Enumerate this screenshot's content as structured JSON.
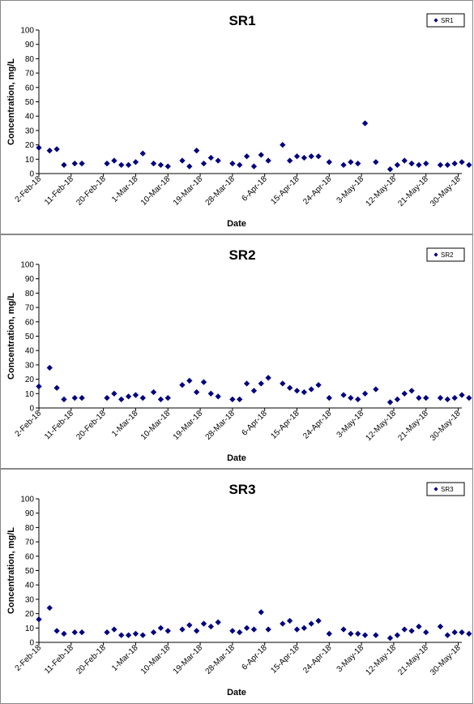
{
  "chart_data": [
    {
      "type": "scatter",
      "title": "SR1",
      "xlabel": "Date",
      "ylabel": "Concentration, mg/L",
      "ylim": [
        0,
        100
      ],
      "yticks": [
        0,
        10,
        20,
        30,
        40,
        50,
        60,
        70,
        80,
        90,
        100
      ],
      "xlim": [
        "2018-02-02",
        "2018-05-31"
      ],
      "xticks": [
        "2-Feb-18",
        "11-Feb-18",
        "20-Feb-18",
        "1-Mar-18",
        "10-Mar-18",
        "19-Mar-18",
        "28-Mar-18",
        "6-Apr-18",
        "15-Apr-18",
        "24-Apr-18",
        "3-May-18",
        "12-May-18",
        "21-May-18",
        "30-May-18"
      ],
      "grid": false,
      "legend": "top-right",
      "marker_color": "#000080",
      "series": [
        {
          "name": "SR1",
          "x": [
            "2018-02-02",
            "2018-02-05",
            "2018-02-07",
            "2018-02-09",
            "2018-02-12",
            "2018-02-14",
            "2018-02-21",
            "2018-02-23",
            "2018-02-25",
            "2018-02-27",
            "2018-03-01",
            "2018-03-03",
            "2018-03-06",
            "2018-03-08",
            "2018-03-10",
            "2018-03-14",
            "2018-03-16",
            "2018-03-18",
            "2018-03-20",
            "2018-03-22",
            "2018-03-24",
            "2018-03-28",
            "2018-03-30",
            "2018-04-01",
            "2018-04-03",
            "2018-04-05",
            "2018-04-07",
            "2018-04-11",
            "2018-04-13",
            "2018-04-15",
            "2018-04-17",
            "2018-04-19",
            "2018-04-21",
            "2018-04-24",
            "2018-04-28",
            "2018-04-30",
            "2018-05-02",
            "2018-05-04",
            "2018-05-07",
            "2018-05-11",
            "2018-05-13",
            "2018-05-15",
            "2018-05-17",
            "2018-05-19",
            "2018-05-21",
            "2018-05-25",
            "2018-05-27",
            "2018-05-29",
            "2018-05-31",
            "2018-06-02"
          ],
          "y": [
            18,
            16,
            17,
            6,
            7,
            7,
            7,
            9,
            6,
            6,
            8,
            14,
            7,
            6,
            5,
            9,
            5,
            16,
            7,
            11,
            9,
            7,
            6,
            12,
            5,
            13,
            9,
            20,
            9,
            12,
            11,
            12,
            12,
            8,
            6,
            8,
            7,
            35,
            8,
            3,
            6,
            9,
            7,
            6,
            7,
            6,
            6,
            7,
            8,
            6
          ]
        }
      ]
    },
    {
      "type": "scatter",
      "title": "SR2",
      "xlabel": "Date",
      "ylabel": "Concentration, mg/L",
      "ylim": [
        0,
        100
      ],
      "yticks": [
        0,
        10,
        20,
        30,
        40,
        50,
        60,
        70,
        80,
        90,
        100
      ],
      "xlim": [
        "2018-02-02",
        "2018-05-31"
      ],
      "xticks": [
        "2-Feb-18",
        "11-Feb-18",
        "20-Feb-18",
        "1-Mar-18",
        "10-Mar-18",
        "19-Mar-18",
        "28-Mar-18",
        "6-Apr-18",
        "15-Apr-18",
        "24-Apr-18",
        "3-May-18",
        "12-May-18",
        "21-May-18",
        "30-May-18"
      ],
      "grid": false,
      "legend": "top-right",
      "marker_color": "#000080",
      "series": [
        {
          "name": "SR2",
          "x": [
            "2018-02-02",
            "2018-02-05",
            "2018-02-07",
            "2018-02-09",
            "2018-02-12",
            "2018-02-14",
            "2018-02-21",
            "2018-02-23",
            "2018-02-25",
            "2018-02-27",
            "2018-03-01",
            "2018-03-03",
            "2018-03-06",
            "2018-03-08",
            "2018-03-10",
            "2018-03-14",
            "2018-03-16",
            "2018-03-18",
            "2018-03-20",
            "2018-03-22",
            "2018-03-24",
            "2018-03-28",
            "2018-03-30",
            "2018-04-01",
            "2018-04-03",
            "2018-04-05",
            "2018-04-07",
            "2018-04-11",
            "2018-04-13",
            "2018-04-15",
            "2018-04-17",
            "2018-04-19",
            "2018-04-21",
            "2018-04-24",
            "2018-04-28",
            "2018-04-30",
            "2018-05-02",
            "2018-05-04",
            "2018-05-07",
            "2018-05-11",
            "2018-05-13",
            "2018-05-15",
            "2018-05-17",
            "2018-05-19",
            "2018-05-21",
            "2018-05-25",
            "2018-05-27",
            "2018-05-29",
            "2018-05-31",
            "2018-06-02"
          ],
          "y": [
            15,
            28,
            14,
            6,
            7,
            7,
            7,
            10,
            6,
            8,
            9,
            7,
            11,
            6,
            7,
            16,
            19,
            11,
            18,
            10,
            8,
            6,
            6,
            17,
            12,
            17,
            21,
            17,
            14,
            12,
            11,
            13,
            16,
            7,
            9,
            7,
            6,
            10,
            13,
            4,
            6,
            10,
            12,
            7,
            7,
            7,
            6,
            7,
            9,
            7
          ]
        }
      ]
    },
    {
      "type": "scatter",
      "title": "SR3",
      "xlabel": "Date",
      "ylabel": "Concentration, mg/L",
      "ylim": [
        0,
        100
      ],
      "yticks": [
        0,
        10,
        20,
        30,
        40,
        50,
        60,
        70,
        80,
        90,
        100
      ],
      "xlim": [
        "2018-02-02",
        "2018-05-31"
      ],
      "xticks": [
        "2-Feb-18",
        "11-Feb-18",
        "20-Feb-18",
        "1-Mar-18",
        "10-Mar-18",
        "19-Mar-18",
        "28-Mar-18",
        "6-Apr-18",
        "15-Apr-18",
        "24-Apr-18",
        "3-May-18",
        "12-May-18",
        "21-May-18",
        "30-May-18"
      ],
      "grid": false,
      "legend": "top-right",
      "marker_color": "#000080",
      "series": [
        {
          "name": "SR3",
          "x": [
            "2018-02-02",
            "2018-02-05",
            "2018-02-07",
            "2018-02-09",
            "2018-02-12",
            "2018-02-14",
            "2018-02-21",
            "2018-02-23",
            "2018-02-25",
            "2018-02-27",
            "2018-03-01",
            "2018-03-03",
            "2018-03-06",
            "2018-03-08",
            "2018-03-10",
            "2018-03-14",
            "2018-03-16",
            "2018-03-18",
            "2018-03-20",
            "2018-03-22",
            "2018-03-24",
            "2018-03-28",
            "2018-03-30",
            "2018-04-01",
            "2018-04-03",
            "2018-04-05",
            "2018-04-07",
            "2018-04-11",
            "2018-04-13",
            "2018-04-15",
            "2018-04-17",
            "2018-04-19",
            "2018-04-21",
            "2018-04-24",
            "2018-04-28",
            "2018-04-30",
            "2018-05-02",
            "2018-05-04",
            "2018-05-07",
            "2018-05-11",
            "2018-05-13",
            "2018-05-15",
            "2018-05-17",
            "2018-05-19",
            "2018-05-21",
            "2018-05-25",
            "2018-05-27",
            "2018-05-29",
            "2018-05-31",
            "2018-06-02"
          ],
          "y": [
            16,
            24,
            8,
            6,
            7,
            7,
            7,
            9,
            5,
            5,
            6,
            5,
            7,
            10,
            8,
            9,
            12,
            8,
            13,
            11,
            14,
            8,
            7,
            10,
            9,
            21,
            9,
            13,
            15,
            9,
            10,
            13,
            15,
            6,
            9,
            6,
            6,
            5,
            5,
            3,
            5,
            9,
            8,
            11,
            7,
            11,
            5,
            7,
            7,
            6
          ]
        }
      ]
    }
  ]
}
